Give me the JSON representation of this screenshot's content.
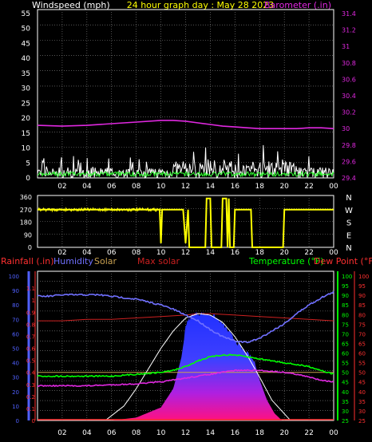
{
  "header": {
    "left_label": "Windspeed (mph)",
    "title": "24 hour graph day : May 28 2023",
    "right_label": "Barometer (.in)"
  },
  "colors": {
    "background": "#000000",
    "frame": "#ffffff",
    "grid": "#8a8a8a",
    "windspeed": "#ffffff",
    "wind_avg": "#33ff33",
    "barometer": "#e028e0",
    "direction": "#ffff00",
    "rainfall": "#ff3030",
    "humidity": "#7070ff",
    "solar": "#c8a050",
    "max_solar": "#cc2020",
    "temperature": "#00ff00",
    "dew_point": "#ff3030",
    "axis_green": "#00ff00",
    "axis_blue": "#5060ff"
  },
  "x_ticks": [
    "02",
    "04",
    "06",
    "08",
    "10",
    "12",
    "14",
    "16",
    "18",
    "20",
    "22",
    "00"
  ],
  "chart_data": [
    {
      "type": "line",
      "name": "wind_barometer",
      "x_range": [
        0,
        24
      ],
      "y_left": {
        "label": "Windspeed (mph)",
        "ticks": [
          "0",
          "5",
          "10",
          "15",
          "20",
          "25",
          "30",
          "35",
          "40",
          "45",
          "50",
          "55"
        ],
        "range": [
          0,
          55
        ]
      },
      "y_right": {
        "label": "Barometer (.in)",
        "ticks": [
          "29.4",
          "29.6",
          "29.8",
          "30",
          "30.2",
          "30.4",
          "30.6",
          "30.8",
          "31",
          "31.2",
          "31.4"
        ],
        "range": [
          29.4,
          31.4
        ]
      },
      "grid": true,
      "series": [
        {
          "name": "Barometer",
          "axis": "right",
          "x": [
            0,
            2,
            4,
            6,
            8,
            10,
            11,
            12,
            13,
            14,
            15,
            16,
            17,
            18,
            19,
            20,
            21,
            22,
            23,
            24
          ],
          "values": [
            30.04,
            30.03,
            30.04,
            30.06,
            30.08,
            30.1,
            30.1,
            30.09,
            30.07,
            30.05,
            30.03,
            30.02,
            30.01,
            30.0,
            30.0,
            30.0,
            30.0,
            30.01,
            30.01,
            30.0
          ]
        },
        {
          "name": "Windspeed",
          "axis": "left",
          "gust_band": [
            0,
            10
          ],
          "avg_band": [
            0,
            4
          ]
        }
      ]
    },
    {
      "type": "line",
      "name": "wind_direction",
      "x_range": [
        0,
        24
      ],
      "y_left": {
        "ticks": [
          "0",
          "90",
          "180",
          "270",
          "360"
        ],
        "range": [
          0,
          360
        ]
      },
      "y_right": {
        "ticks": [
          "N",
          "W",
          "S",
          "E",
          "N"
        ]
      },
      "grid": true,
      "series": [
        {
          "name": "Direction",
          "x": [
            0,
            9.9,
            10,
            10.1,
            11.8,
            12,
            12.2,
            12.3,
            13.6,
            13.7,
            14.0,
            14.1,
            14.9,
            15.0,
            15.3,
            15.4,
            15.5,
            15.6,
            15.9,
            16.0,
            17.3,
            17.4,
            17.6,
            17.7,
            19.9,
            20.0,
            24
          ],
          "values": [
            270,
            270,
            30,
            270,
            270,
            30,
            270,
            0,
            0,
            350,
            350,
            0,
            0,
            350,
            350,
            0,
            350,
            0,
            0,
            270,
            270,
            0,
            0,
            0,
            0,
            270,
            270
          ]
        }
      ]
    },
    {
      "type": "area",
      "name": "climate",
      "x_range": [
        0,
        24
      ],
      "labels": {
        "rainfall": "Rainfall (.in)",
        "humidity": "Humidity",
        "solar": "Solar",
        "max_solar": "Max solar",
        "temperature": "Temperature (°F)",
        "dew_point": "Dew Point (°F)"
      },
      "y_rain": {
        "ticks": [
          "0",
          "0.1",
          "0.2",
          "0.3",
          "0.4",
          "0.5",
          "0.6",
          "0.7",
          "0.8",
          "0.9",
          "1",
          "1.1"
        ],
        "range": [
          0,
          1.2
        ]
      },
      "y_humidity": {
        "ticks": [
          "0",
          "10",
          "20",
          "30",
          "40",
          "50",
          "60",
          "70",
          "80",
          "90",
          "100"
        ],
        "range": [
          0,
          100
        ]
      },
      "y_temp": {
        "ticks": [
          "25",
          "30",
          "35",
          "40",
          "45",
          "50",
          "55",
          "60",
          "65",
          "70",
          "75",
          "80",
          "85",
          "90",
          "95",
          "100"
        ],
        "range": [
          25,
          100
        ]
      },
      "grid": true,
      "series": [
        {
          "name": "Humidity",
          "x": [
            0,
            1,
            2,
            3,
            4,
            5,
            6,
            7,
            8,
            9,
            10,
            11,
            12,
            13,
            14,
            15,
            16,
            17,
            18,
            19,
            20,
            21,
            22,
            23,
            24
          ],
          "values": [
            86,
            86,
            87,
            87,
            87,
            87,
            86,
            85,
            84,
            82,
            80,
            77,
            73,
            69,
            63,
            58,
            55,
            54,
            57,
            62,
            67,
            74,
            80,
            85,
            89
          ]
        },
        {
          "name": "Temperature",
          "x": [
            0,
            1,
            2,
            3,
            4,
            5,
            6,
            7,
            8,
            9,
            10,
            11,
            12,
            13,
            14,
            15,
            16,
            17,
            18,
            19,
            20,
            21,
            22,
            23,
            24
          ],
          "values": [
            48,
            48,
            48,
            48,
            48,
            48,
            48,
            48.5,
            49,
            49.5,
            50,
            51,
            53,
            56,
            58,
            59,
            59,
            58,
            57,
            56,
            55,
            54,
            53,
            51,
            49
          ]
        },
        {
          "name": "Dew Point",
          "x": [
            0,
            2,
            4,
            6,
            8,
            10,
            11,
            12,
            13,
            14,
            15,
            16,
            17,
            18,
            19,
            20,
            21,
            22,
            23,
            24
          ],
          "values": [
            43,
            43,
            43,
            43.5,
            44,
            45,
            46,
            47,
            48,
            49,
            50,
            51,
            51,
            51,
            50.5,
            50,
            49,
            47.5,
            46,
            45
          ]
        },
        {
          "name": "Solar",
          "axis": "rain",
          "x": [
            0,
            24
          ],
          "values": [
            0.4,
            0.4
          ]
        },
        {
          "name": "Max solar",
          "x": [
            0,
            2,
            4,
            6,
            8,
            10,
            12,
            13,
            14,
            16,
            18,
            20,
            22,
            24
          ],
          "values": [
            69,
            69,
            70,
            70,
            71,
            72,
            73,
            74,
            74,
            73,
            72,
            71,
            70,
            69
          ]
        },
        {
          "name": "Solar curve",
          "axis": "humidity",
          "x": [
            5.5,
            7,
            8,
            9,
            10,
            11,
            12,
            13,
            14,
            15,
            16,
            17,
            18,
            19,
            20.5
          ],
          "values": [
            0,
            10,
            22,
            36,
            50,
            62,
            71,
            74,
            73,
            68,
            58,
            45,
            30,
            14,
            0
          ]
        },
        {
          "name": "Solar radiation",
          "axis": "humidity",
          "x": [
            6,
            8,
            10,
            11,
            11.7,
            12,
            12.6,
            13.4,
            14.2,
            15,
            15.8,
            16.5,
            17.2,
            17.6,
            18,
            18.6,
            19.2,
            19.8
          ],
          "values": [
            0,
            2,
            9,
            22,
            45,
            66,
            74,
            74,
            73,
            67,
            58,
            50,
            45,
            40,
            28,
            14,
            5,
            0
          ]
        }
      ]
    }
  ]
}
